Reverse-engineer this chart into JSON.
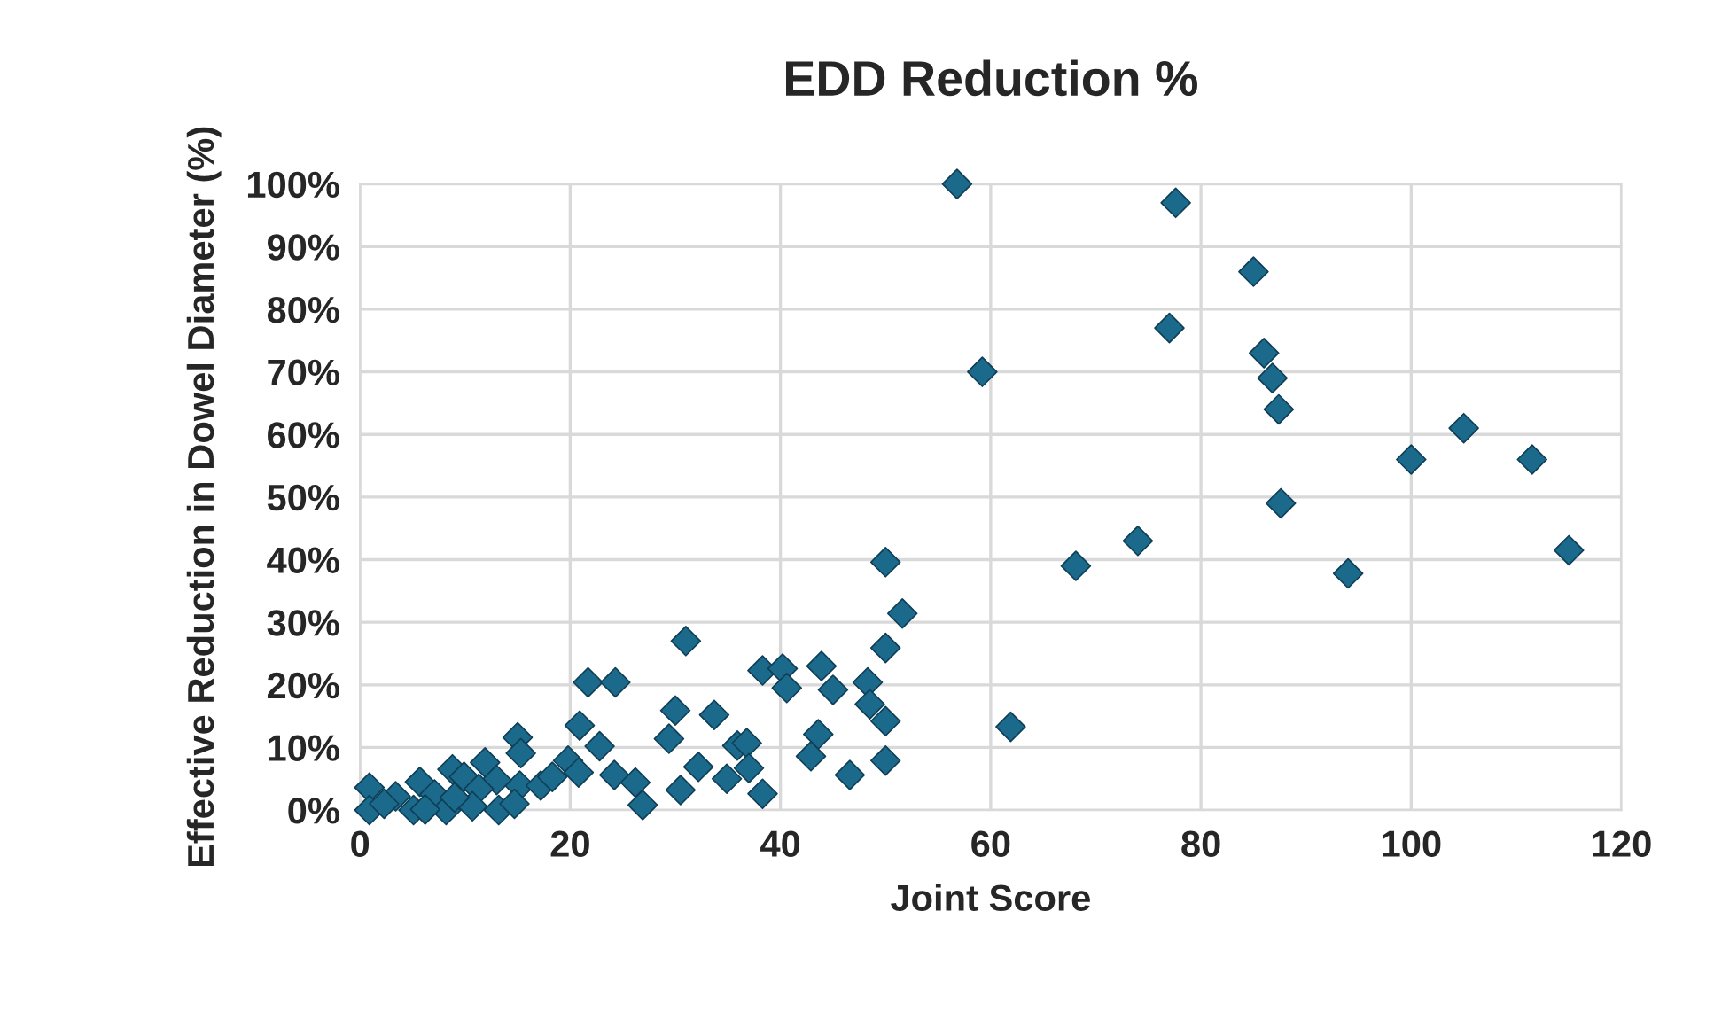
{
  "chart_data": {
    "type": "scatter",
    "title": "EDD Reduction %",
    "xlabel": "Joint Score",
    "ylabel": "Effective Reduction in Dowel Diameter (%)",
    "x": [
      56.8,
      77.6,
      85,
      77,
      59.2,
      86,
      86.8,
      87.4,
      87.6,
      100,
      105,
      111.5,
      115,
      74,
      68.1,
      94,
      61.9,
      51.6,
      50,
      50,
      50,
      50,
      31,
      38.3,
      40.2,
      40.6,
      43.9,
      45,
      48.3,
      48.5,
      30,
      33.7,
      29.4,
      35.9,
      36.8,
      43.6,
      42.9,
      32.2,
      34.9,
      37,
      30.5,
      38.3,
      46.6,
      21.7,
      24.3,
      20.9,
      22.8,
      15,
      15.3,
      19.8,
      20.8,
      24.2,
      26.2,
      26.9,
      11.9,
      8.8,
      9.9,
      5.7,
      0.9,
      15.2,
      17.2,
      18.3,
      13,
      3.4,
      7.1,
      11.3,
      0.9,
      5.1,
      8.2,
      10.7,
      13.2,
      14.7,
      2.3,
      9,
      6.2
    ],
    "values": [
      100,
      97,
      86,
      77,
      70,
      73,
      69,
      64,
      49,
      56,
      61,
      56,
      41.5,
      43,
      39,
      37.8,
      13.3,
      31.4,
      39.6,
      25.9,
      14.2,
      7.9,
      27,
      22.3,
      22.6,
      19.5,
      23,
      19.2,
      20.4,
      16.9,
      15.9,
      15.2,
      11.4,
      10.3,
      10.7,
      12.1,
      8.6,
      6.9,
      5,
      6.7,
      3.2,
      2.6,
      5.6,
      20.4,
      20.4,
      13.5,
      10.2,
      11.6,
      9.1,
      7.9,
      6,
      5.6,
      4.4,
      0.8,
      7.6,
      6.5,
      5.3,
      4.5,
      3.6,
      3.9,
      3.9,
      5.3,
      4.8,
      2.2,
      2.5,
      3.4,
      0,
      0,
      0,
      0.6,
      0,
      1,
      1,
      2,
      0.1
    ],
    "color": "#1b6a8c",
    "marker": "diamond",
    "grid": true,
    "xlim": [
      0,
      120
    ],
    "xticks": [
      0,
      20,
      40,
      60,
      80,
      100,
      120
    ],
    "ylim": [
      0,
      100
    ],
    "yticks": [
      {
        "value": 0,
        "label": "0%"
      },
      {
        "value": 10,
        "label": "10%"
      },
      {
        "value": 20,
        "label": "20%"
      },
      {
        "value": 30,
        "label": "30%"
      },
      {
        "value": 40,
        "label": "40%"
      },
      {
        "value": 50,
        "label": "50%"
      },
      {
        "value": 60,
        "label": "60%"
      },
      {
        "value": 70,
        "label": "70%"
      },
      {
        "value": 80,
        "label": "80%"
      },
      {
        "value": 90,
        "label": "90%"
      },
      {
        "value": 100,
        "label": "100%"
      }
    ]
  }
}
